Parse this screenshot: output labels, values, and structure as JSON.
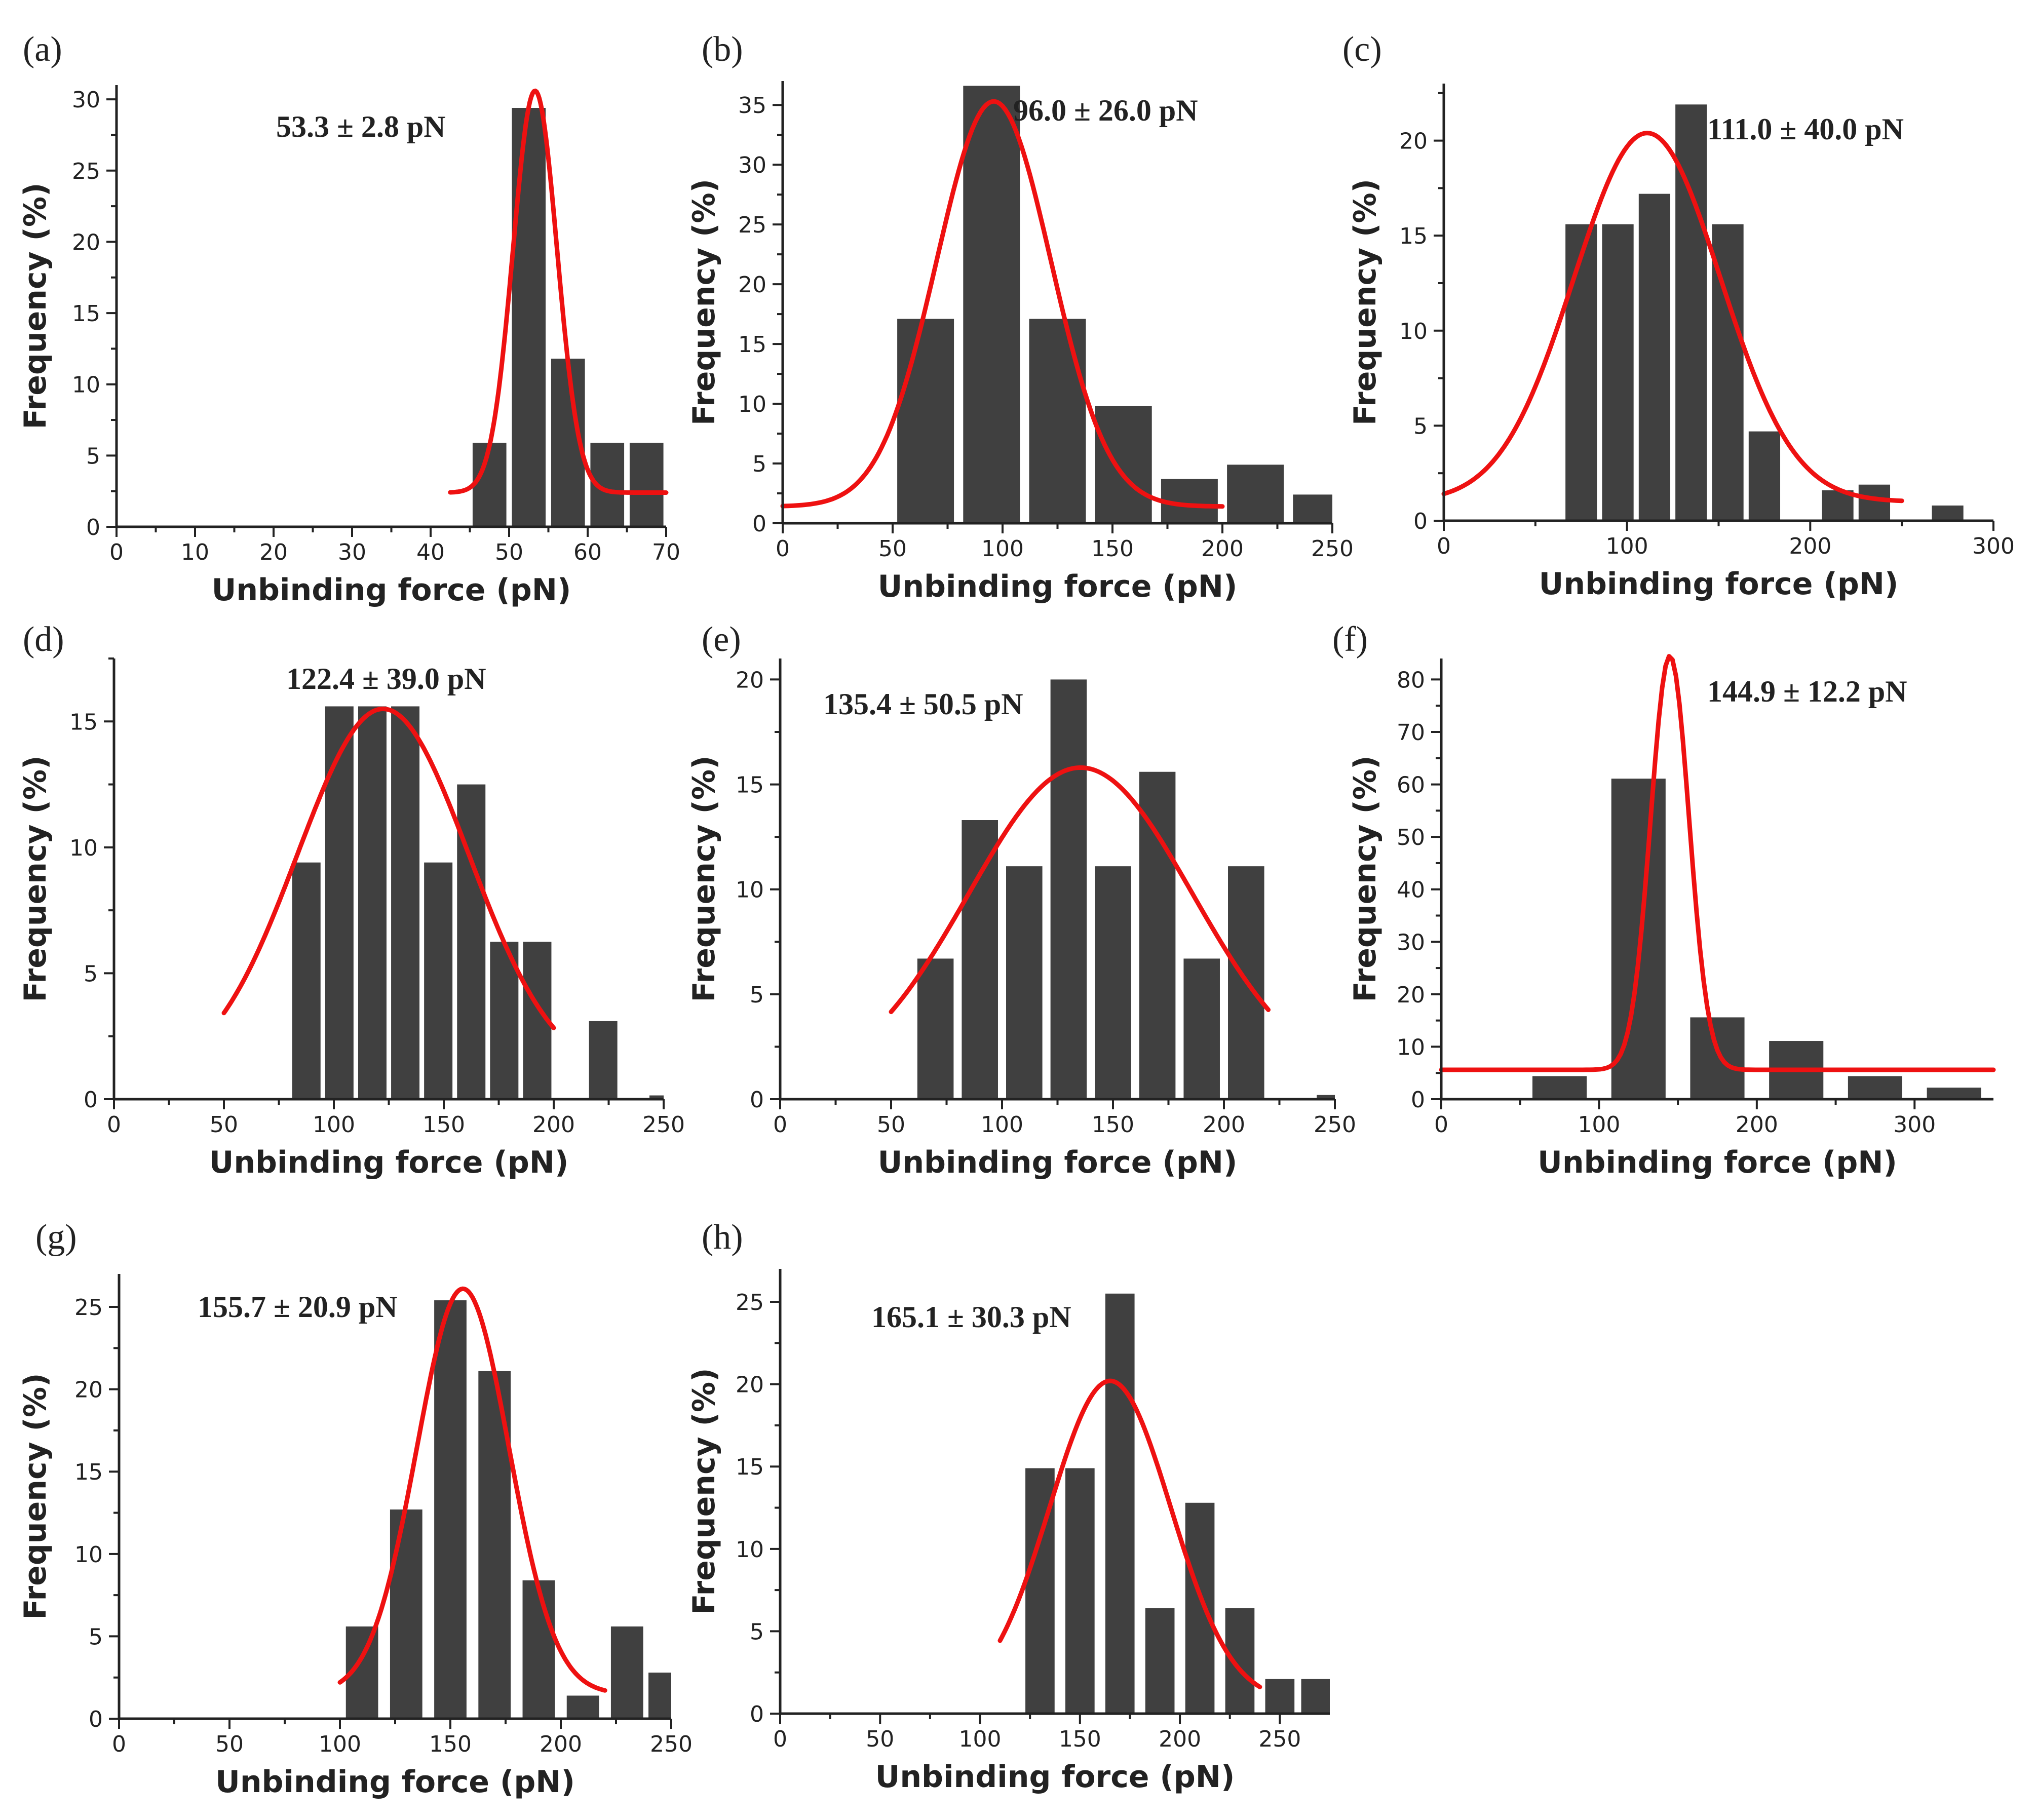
{
  "figure": {
    "colors": {
      "bar": "#404040",
      "fit": "#ee1111",
      "axis": "#222222"
    }
  },
  "chart_data": [
    {
      "id": "a",
      "panel_label": "(a)",
      "type": "bar",
      "xlabel": "Unbinding force (pN)",
      "ylabel": "Frequency (%)",
      "annotation": "53.3 ± 2.8 pN",
      "xlim": [
        0,
        70
      ],
      "ylim": [
        0,
        31
      ],
      "xticks": [
        0,
        10,
        20,
        30,
        40,
        50,
        60,
        70
      ],
      "yticks": [
        0,
        5,
        10,
        15,
        20,
        25,
        30
      ],
      "bin_width": 5,
      "bins": [
        {
          "x": 47.5,
          "y": 5.9
        },
        {
          "x": 52.5,
          "y": 29.4
        },
        {
          "x": 57.5,
          "y": 11.8
        },
        {
          "x": 62.5,
          "y": 5.9
        },
        {
          "x": 67.5,
          "y": 5.9
        }
      ],
      "fit": {
        "mean": 53.3,
        "sigma": 2.8,
        "amplitude": 28.2,
        "baseline": 2.4,
        "x_range": [
          42.5,
          70
        ]
      }
    },
    {
      "id": "b",
      "panel_label": "(b)",
      "type": "bar",
      "xlabel": "Unbinding force (pN)",
      "ylabel": "Frequency (%)",
      "annotation": "96.0 ± 26.0 pN",
      "xlim": [
        0,
        250
      ],
      "ylim": [
        0,
        37
      ],
      "xticks": [
        0,
        50,
        100,
        150,
        200,
        250
      ],
      "yticks": [
        0,
        5,
        10,
        15,
        20,
        25,
        30,
        35
      ],
      "bin_width": 30,
      "bins": [
        {
          "x": 65,
          "y": 17.1
        },
        {
          "x": 95,
          "y": 36.6
        },
        {
          "x": 125,
          "y": 17.1
        },
        {
          "x": 155,
          "y": 9.8
        },
        {
          "x": 185,
          "y": 3.7
        },
        {
          "x": 215,
          "y": 4.9
        },
        {
          "x": 245,
          "y": 2.4
        }
      ],
      "fit": {
        "mean": 96.0,
        "sigma": 26.0,
        "amplitude": 33.9,
        "baseline": 1.4,
        "x_range": [
          0,
          200
        ]
      }
    },
    {
      "id": "c",
      "panel_label": "(c)",
      "type": "bar",
      "xlabel": "Unbinding force (pN)",
      "ylabel": "Frequency (%)",
      "annotation": "111.0 ± 40.0 pN",
      "xlim": [
        0,
        300
      ],
      "ylim": [
        0,
        23
      ],
      "xticks": [
        0,
        100,
        200,
        300
      ],
      "yticks": [
        0,
        5,
        10,
        15,
        20
      ],
      "bin_width": 20,
      "bins": [
        {
          "x": 75,
          "y": 15.6
        },
        {
          "x": 95,
          "y": 15.6
        },
        {
          "x": 115,
          "y": 17.2
        },
        {
          "x": 135,
          "y": 21.9
        },
        {
          "x": 155,
          "y": 15.6
        },
        {
          "x": 175,
          "y": 4.7
        },
        {
          "x": 215,
          "y": 1.6
        },
        {
          "x": 235,
          "y": 1.9
        },
        {
          "x": 275,
          "y": 0.8
        }
      ],
      "fit": {
        "mean": 111.0,
        "sigma": 40.0,
        "amplitude": 19.4,
        "baseline": 1.0,
        "x_range": [
          0,
          250
        ]
      }
    },
    {
      "id": "d",
      "panel_label": "(d)",
      "type": "bar",
      "xlabel": "Unbinding force (pN)",
      "ylabel": "Frequency (%)",
      "annotation": "122.4 ± 39.0 pN",
      "xlim": [
        0,
        250
      ],
      "ylim": [
        0,
        17.5
      ],
      "xticks": [
        0,
        50,
        100,
        150,
        200,
        250
      ],
      "yticks": [
        0,
        5,
        10,
        15
      ],
      "bin_width": 15,
      "bins": [
        {
          "x": 87.5,
          "y": 9.4
        },
        {
          "x": 102.5,
          "y": 15.6
        },
        {
          "x": 117.5,
          "y": 15.6
        },
        {
          "x": 132.5,
          "y": 15.6
        },
        {
          "x": 147.5,
          "y": 9.4
        },
        {
          "x": 162.5,
          "y": 12.5
        },
        {
          "x": 177.5,
          "y": 6.25
        },
        {
          "x": 192.5,
          "y": 6.25
        },
        {
          "x": 222.5,
          "y": 3.1
        },
        {
          "x": 250,
          "y": 0.15
        }
      ],
      "fit": {
        "mean": 122.4,
        "sigma": 39.0,
        "amplitude": 14.7,
        "baseline": 0.8,
        "x_range": [
          50,
          200
        ]
      }
    },
    {
      "id": "e",
      "panel_label": "(e)",
      "type": "bar",
      "xlabel": "Unbinding force (pN)",
      "ylabel": "Frequency (%)",
      "annotation": "135.4 ± 50.5 pN",
      "xlim": [
        0,
        250
      ],
      "ylim": [
        0,
        21
      ],
      "xticks": [
        0,
        50,
        100,
        150,
        200,
        250
      ],
      "yticks": [
        0,
        5,
        10,
        15,
        20
      ],
      "bin_width": 19,
      "bins": [
        {
          "x": 70,
          "y": 6.7
        },
        {
          "x": 90,
          "y": 13.3
        },
        {
          "x": 110,
          "y": 11.1
        },
        {
          "x": 130,
          "y": 20.0
        },
        {
          "x": 150,
          "y": 11.1
        },
        {
          "x": 170,
          "y": 15.6
        },
        {
          "x": 190,
          "y": 6.7
        },
        {
          "x": 210,
          "y": 11.1
        },
        {
          "x": 250,
          "y": 0.2
        }
      ],
      "fit": {
        "mean": 135.4,
        "sigma": 50.5,
        "amplitude": 15.3,
        "baseline": 0.5,
        "x_range": [
          50,
          220
        ]
      }
    },
    {
      "id": "f",
      "panel_label": "(f)",
      "type": "bar",
      "xlabel": "Unbinding force (pN)",
      "ylabel": "Frequency (%)",
      "annotation": "144.9 ± 12.2 pN",
      "xlim": [
        0,
        350
      ],
      "ylim": [
        0,
        84
      ],
      "xticks": [
        0,
        100,
        200,
        300
      ],
      "yticks": [
        0,
        10,
        20,
        30,
        40,
        50,
        60,
        70,
        80
      ],
      "bin_width": 40,
      "bins": [
        {
          "x": 75,
          "y": 4.4
        },
        {
          "x": 125,
          "y": 61.1
        },
        {
          "x": 175,
          "y": 15.6
        },
        {
          "x": 225,
          "y": 11.1
        },
        {
          "x": 275,
          "y": 4.4
        },
        {
          "x": 325,
          "y": 2.2
        }
      ],
      "fit": {
        "mean": 144.9,
        "sigma": 12.2,
        "amplitude": 78.9,
        "baseline": 5.6,
        "x_range": [
          0,
          350
        ]
      }
    },
    {
      "id": "g",
      "panel_label": "(g)",
      "type": "bar",
      "xlabel": "Unbinding force (pN)",
      "ylabel": "Frequency (%)",
      "annotation": "155.7 ± 20.9 pN",
      "xlim": [
        0,
        250
      ],
      "ylim": [
        0,
        27
      ],
      "xticks": [
        0,
        50,
        100,
        150,
        200,
        250
      ],
      "yticks": [
        0,
        5,
        10,
        15,
        20,
        25
      ],
      "bin_width": 17,
      "bins": [
        {
          "x": 110,
          "y": 5.6
        },
        {
          "x": 130,
          "y": 12.7
        },
        {
          "x": 150,
          "y": 25.4
        },
        {
          "x": 170,
          "y": 21.1
        },
        {
          "x": 190,
          "y": 8.4
        },
        {
          "x": 210,
          "y": 1.4
        },
        {
          "x": 230,
          "y": 5.6
        },
        {
          "x": 247,
          "y": 2.8
        }
      ],
      "fit": {
        "mean": 155.7,
        "sigma": 20.9,
        "amplitude": 24.6,
        "baseline": 1.5,
        "x_range": [
          100,
          220
        ]
      }
    },
    {
      "id": "h",
      "panel_label": "(h)",
      "type": "bar",
      "xlabel": "Unbinding force (pN)",
      "ylabel": "Frequency (%)",
      "annotation": "165.1 ± 30.3 pN",
      "xlim": [
        0,
        275
      ],
      "ylim": [
        0,
        27
      ],
      "xticks": [
        0,
        50,
        100,
        150,
        200,
        250
      ],
      "yticks": [
        0,
        5,
        10,
        15,
        20,
        25
      ],
      "bin_width": 17,
      "bins": [
        {
          "x": 130,
          "y": 14.9
        },
        {
          "x": 150,
          "y": 14.9
        },
        {
          "x": 170,
          "y": 25.5
        },
        {
          "x": 190,
          "y": 6.4
        },
        {
          "x": 210,
          "y": 12.8
        },
        {
          "x": 230,
          "y": 6.4
        },
        {
          "x": 250,
          "y": 2.1
        },
        {
          "x": 268,
          "y": 2.1
        }
      ],
      "fit": {
        "mean": 165.1,
        "sigma": 30.3,
        "amplitude": 19.5,
        "baseline": 0.7,
        "x_range": [
          110,
          240
        ]
      }
    }
  ]
}
